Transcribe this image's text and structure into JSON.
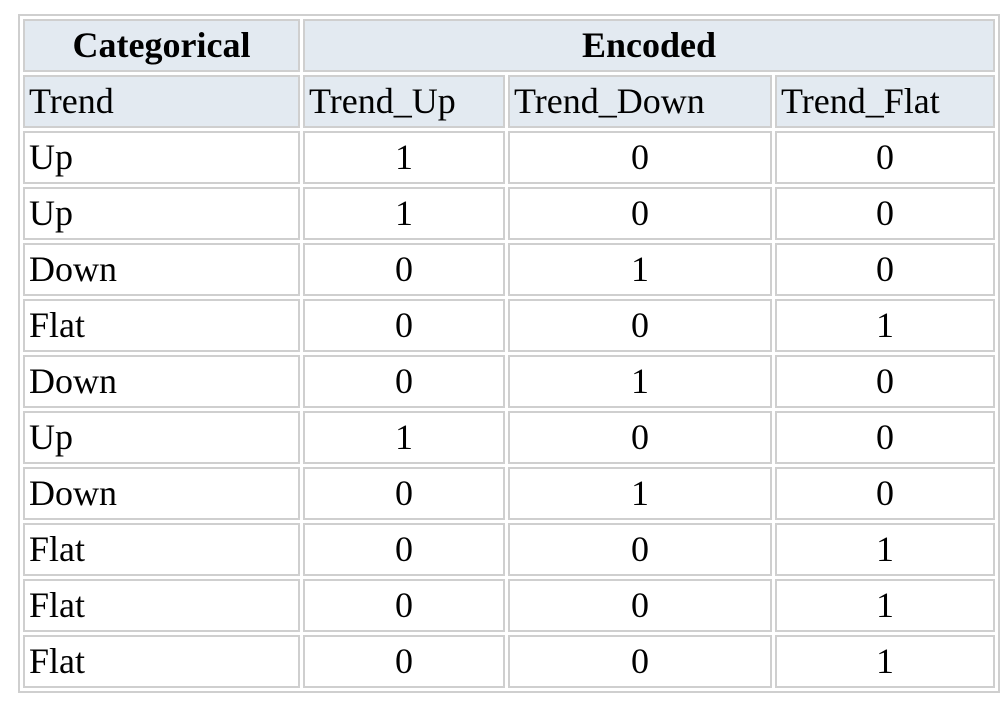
{
  "table": {
    "group_headers": {
      "categorical": "Categorical",
      "encoded": "Encoded"
    },
    "columns": [
      "Trend",
      "Trend_Up",
      "Trend_Down",
      "Trend_Flat"
    ],
    "rows": [
      [
        "Up",
        "1",
        "0",
        "0"
      ],
      [
        "Up",
        "1",
        "0",
        "0"
      ],
      [
        "Down",
        "0",
        "1",
        "0"
      ],
      [
        "Flat",
        "0",
        "0",
        "1"
      ],
      [
        "Down",
        "0",
        "1",
        "0"
      ],
      [
        "Up",
        "1",
        "0",
        "0"
      ],
      [
        "Down",
        "0",
        "1",
        "0"
      ],
      [
        "Flat",
        "0",
        "0",
        "1"
      ],
      [
        "Flat",
        "0",
        "0",
        "1"
      ],
      [
        "Flat",
        "0",
        "0",
        "1"
      ]
    ]
  }
}
